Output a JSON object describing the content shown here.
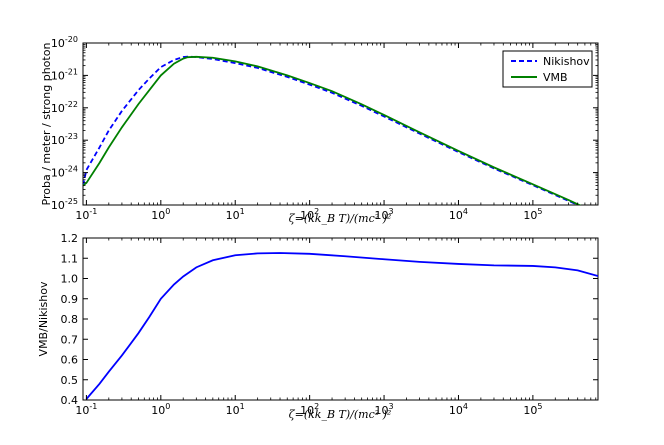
{
  "chart_data": [
    {
      "type": "line",
      "yscale": "log",
      "xscale": "log",
      "xlim": [
        0.09,
        750000
      ],
      "ylim": [
        1e-25,
        1e-20
      ],
      "xlabel": "ζ=(kk_B T)/(mc² )²",
      "ylabel": "Proba / meter / strong photon",
      "x_ticks": [
        0.1,
        1,
        10,
        100,
        1000,
        10000,
        100000
      ],
      "x_tick_labels": [
        [
          "10",
          "-1"
        ],
        [
          "10",
          "0"
        ],
        [
          "10",
          "1"
        ],
        [
          "10",
          "2"
        ],
        [
          "10",
          "3"
        ],
        [
          "10",
          "4"
        ],
        [
          "10",
          "5"
        ]
      ],
      "y_ticks": [
        1e-25,
        1e-24,
        1e-23,
        1e-22,
        1e-21,
        1e-20
      ],
      "y_tick_labels": [
        [
          "10",
          "-25"
        ],
        [
          "10",
          "-24"
        ],
        [
          "10",
          "-23"
        ],
        [
          "10",
          "-22"
        ],
        [
          "10",
          "-21"
        ],
        [
          "10",
          "-20"
        ]
      ],
      "legend": {
        "placement": "top-right"
      },
      "series": [
        {
          "name": "Nikishov",
          "style": "dashed",
          "color": "#0000ff",
          "x": [
            0.09,
            0.1,
            0.15,
            0.2,
            0.3,
            0.5,
            0.7,
            1,
            1.5,
            2,
            2.3,
            3,
            5,
            10,
            20,
            50,
            100,
            200,
            500,
            1000,
            3000,
            10000,
            30000,
            100000,
            300000,
            750000
          ],
          "y": [
            4e-25,
            1.2e-24,
            6e-24,
            2e-23,
            8e-23,
            3.5e-22,
            8e-22,
            1.8e-21,
            3e-21,
            3.7e-21,
            3.8e-21,
            3.7e-21,
            3.2e-21,
            2.4e-21,
            1.7e-21,
            9e-22,
            5.2e-22,
            2.9e-22,
            1.15e-22,
            5.4e-23,
            1.6e-23,
            4.3e-24,
            1.35e-24,
            4.1e-25,
            1.35e-25,
            5.3e-26
          ]
        },
        {
          "name": "VMB",
          "style": "solid",
          "color": "#008000",
          "x": [
            0.09,
            0.1,
            0.15,
            0.2,
            0.3,
            0.5,
            0.7,
            1,
            1.5,
            2,
            2.3,
            3,
            5,
            10,
            20,
            50,
            100,
            200,
            500,
            1000,
            3000,
            10000,
            30000,
            100000,
            300000,
            750000
          ],
          "y": [
            4e-25,
            4.8e-25,
            2e-24,
            6e-24,
            2.5e-23,
            1.3e-22,
            3.5e-22,
            1e-21,
            2.3e-21,
            3.3e-21,
            3.65e-21,
            3.75e-21,
            3.5e-21,
            2.7e-21,
            1.9e-21,
            1e-21,
            5.8e-22,
            3.25e-22,
            1.28e-22,
            6e-23,
            1.75e-23,
            4.65e-24,
            1.45e-24,
            4.35e-25,
            1.43e-25,
            5.4e-26
          ]
        }
      ]
    },
    {
      "type": "line",
      "xscale": "log",
      "yscale": "linear",
      "xlim": [
        0.09,
        750000
      ],
      "ylim": [
        0.4,
        1.2
      ],
      "xlabel": "ζ=(kk_B T)/(mc² )²",
      "ylabel": "VMB/Nikishov",
      "x_ticks": [
        0.1,
        1,
        10,
        100,
        1000,
        10000,
        100000
      ],
      "x_tick_labels": [
        [
          "10",
          "-1"
        ],
        [
          "10",
          "0"
        ],
        [
          "10",
          "1"
        ],
        [
          "10",
          "2"
        ],
        [
          "10",
          "3"
        ],
        [
          "10",
          "4"
        ],
        [
          "10",
          "5"
        ]
      ],
      "y_ticks": [
        0.4,
        0.5,
        0.6,
        0.7,
        0.8,
        0.9,
        1.0,
        1.1,
        1.2
      ],
      "y_tick_labels": [
        "0.4",
        "0.5",
        "0.6",
        "0.7",
        "0.8",
        "0.9",
        "1.0",
        "1.1",
        "1.2"
      ],
      "series": [
        {
          "style": "solid",
          "color": "#0000ff",
          "x": [
            0.1,
            0.15,
            0.2,
            0.3,
            0.5,
            0.7,
            1,
            1.5,
            2,
            3,
            5,
            10,
            20,
            40,
            100,
            300,
            1000,
            3000,
            10000,
            30000,
            100000,
            200000,
            400000,
            750000
          ],
          "y": [
            0.405,
            0.48,
            0.54,
            0.62,
            0.73,
            0.81,
            0.9,
            0.97,
            1.01,
            1.055,
            1.09,
            1.115,
            1.124,
            1.126,
            1.122,
            1.11,
            1.095,
            1.082,
            1.072,
            1.065,
            1.062,
            1.055,
            1.04,
            1.012
          ]
        }
      ]
    }
  ]
}
